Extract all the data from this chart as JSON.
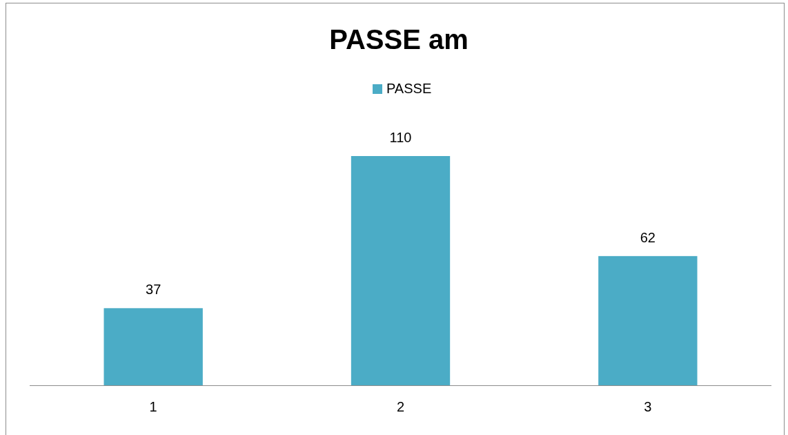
{
  "chart_data": {
    "type": "bar",
    "title": "PASSE am",
    "categories": [
      "1",
      "2",
      "3"
    ],
    "series": [
      {
        "name": "PASSE",
        "color": "#4bacc6",
        "values": [
          37,
          110,
          62
        ]
      }
    ],
    "data_labels": true,
    "legend": "top"
  }
}
